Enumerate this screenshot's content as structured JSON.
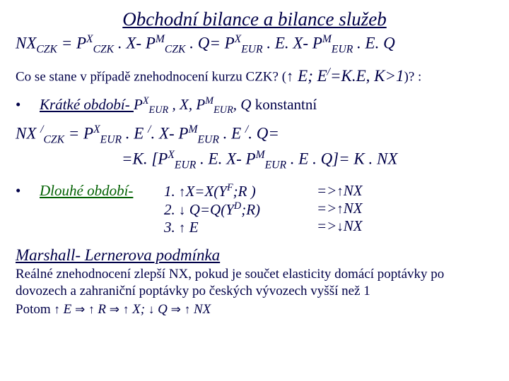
{
  "title": "Obchodní bilance a bilance služeb",
  "eq1_a": "NX",
  "eq1_a_sub": "CZK",
  "eq1_eq": " = P",
  "eq1_b_sup": "X",
  "eq1_b_sub": "CZK",
  "eq1_c": " . X- P",
  "eq1_c_sup": "M",
  "eq1_c_sub": "CZK",
  "eq1_d": " . Q= P",
  "eq1_d_sup": "X",
  "eq1_d_sub": "EUR",
  "eq1_e": " . E. X- P",
  "eq1_e_sup": "M",
  "eq1_e_sub": "EUR",
  "eq1_f": " . E. Q",
  "q_pre": "Co se stane v případě znehodnocení kurzu CZK? (",
  "q_arr": "↑",
  "q_mid": " E; E",
  "q_prime": "/",
  "q_post": "=K.E, K>1",
  "q_end": ")? :",
  "bullet": "•",
  "kratke": "Krátké období- ",
  "kr_p1": "P",
  "kr_p1_sup": "X",
  "kr_p1_sub": "EUR",
  "kr_comma": " , X, P",
  "kr_p2_sup": "M",
  "kr_p2_sub": "EUR",
  "kr_Q": ", Q",
  "kr_konst": " konstantní",
  "eq2_a": "NX ",
  "eq2_prime": "/",
  "eq2_a_sub": "CZK",
  "eq2_b": " = P",
  "eq2_b_sup": "X",
  "eq2_b_sub": "EUR",
  "eq2_c": " . E ",
  "eq2_c2": ". X- P",
  "eq2_d_sup": "M",
  "eq2_d_sub": "EUR",
  "eq2_e": " . E ",
  "eq2_f": ". Q=",
  "eq3_a": "=K. [P",
  "eq3_a_sup": "X",
  "eq3_a_sub": "EUR",
  "eq3_b": " . E. X- P",
  "eq3_b_sup": "M",
  "eq3_b_sub": "EUR",
  "eq3_c": " . E . Q]= K . NX",
  "dlouhe": "Dlouhé období-",
  "l1a": "1. ",
  "l1arr": "↑",
  "l1b": "X=X(Y",
  "l1sup": "F",
  "l1c": ";R )",
  "l2a": "2. ",
  "l2arr": "↓",
  "l2b": " Q=Q(Y",
  "l2sup": "D",
  "l2c": ";R)",
  "l3a": "3. ",
  "l3arr": "↑",
  "l3b": " E",
  "r1a": "=>",
  "r1arr": "↑",
  "r1b": "NX",
  "r2a": "=>",
  "r2arr": "↑",
  "r2b": "NX",
  "r3a": "=>",
  "r3arr": "↓",
  "r3b": "NX",
  "marshall": "Marshall- Lernerova podmínka",
  "desc": "Reálné znehodnocení zlepší NX, pokud je součet elasticity domácí poptávky po dovozech a zahraniční poptávky po českých vývozech vyšší než 1",
  "d2_a": "Potom ",
  "d2_a1": "↑",
  "d2_b": " E ",
  "d2_imp1": "⇒",
  "d2_c": "↑",
  "d2_d": " R ",
  "d2_imp2": "⇒",
  "d2_e": "↑",
  "d2_f": " X; ",
  "d2_g": "↓",
  "d2_h": " Q ",
  "d2_imp3": "⇒",
  "d2_i": "↑",
  "d2_j": " NX"
}
